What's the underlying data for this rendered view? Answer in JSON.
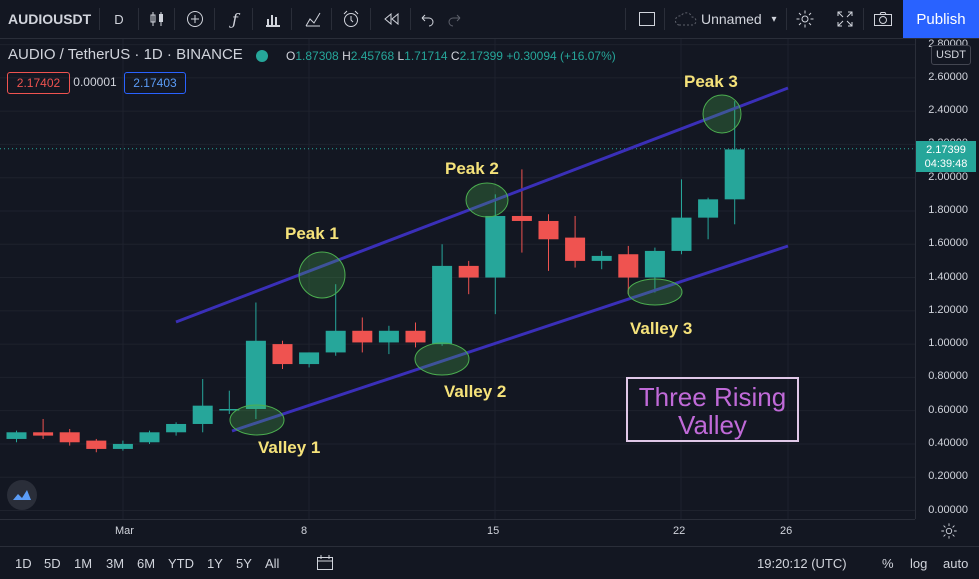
{
  "toolbar": {
    "symbol": "AUDIOUSDT",
    "interval": "D",
    "layout_name": "Unnamed",
    "publish_label": "Publish"
  },
  "legend": {
    "title": "AUDIO / TetherUS · 1D · BINANCE",
    "o_key": "O",
    "o_val": "1.87308",
    "h_key": "H",
    "h_val": "2.45768",
    "l_key": "L",
    "l_val": "1.71714",
    "c_key": "C",
    "c_val": "2.17399",
    "change": "+0.30094 (+16.07%)",
    "bid": "2.17402",
    "spread": "0.00001",
    "ask": "2.17403"
  },
  "price_axis": {
    "currency": "USDT",
    "labels": [
      "2.80000",
      "2.60000",
      "2.40000",
      "2.20000",
      "2.00000",
      "1.80000",
      "1.60000",
      "1.40000",
      "1.20000",
      "1.00000",
      "0.80000",
      "0.60000",
      "0.40000",
      "0.20000",
      "0.00000"
    ],
    "last_price": "2.17399",
    "countdown": "04:39:48"
  },
  "time_axis": {
    "labels": [
      "Mar",
      "8",
      "15",
      "22",
      "26"
    ]
  },
  "annotations": {
    "peak1": "Peak 1",
    "peak2": "Peak 2",
    "peak3": "Peak 3",
    "valley1": "Valley 1",
    "valley2": "Valley 2",
    "valley3": "Valley 3",
    "title_line1": "Three Rising",
    "title_line2": "Valley"
  },
  "bottombar": {
    "ranges": [
      "1D",
      "5D",
      "1M",
      "3M",
      "6M",
      "YTD",
      "1Y",
      "5Y",
      "All"
    ],
    "clock": "19:20:12 (UTC)",
    "percent": "%",
    "log": "log",
    "auto": "auto"
  },
  "colors": {
    "up": "#26a69a",
    "down": "#ef5350",
    "channel": "#3a2fb8",
    "accent": "#2962ff"
  },
  "chart_data": {
    "type": "candlestick",
    "candles": [
      {
        "o": 0.43,
        "h": 0.48,
        "l": 0.41,
        "c": 0.47
      },
      {
        "o": 0.47,
        "h": 0.55,
        "l": 0.43,
        "c": 0.45
      },
      {
        "o": 0.47,
        "h": 0.49,
        "l": 0.39,
        "c": 0.41
      },
      {
        "o": 0.42,
        "h": 0.43,
        "l": 0.35,
        "c": 0.37
      },
      {
        "o": 0.37,
        "h": 0.42,
        "l": 0.36,
        "c": 0.4
      },
      {
        "o": 0.41,
        "h": 0.48,
        "l": 0.4,
        "c": 0.47
      },
      {
        "o": 0.47,
        "h": 0.53,
        "l": 0.45,
        "c": 0.52
      },
      {
        "o": 0.52,
        "h": 0.79,
        "l": 0.47,
        "c": 0.63
      },
      {
        "o": 0.61,
        "h": 0.72,
        "l": 0.58,
        "c": 0.61
      },
      {
        "o": 0.61,
        "h": 1.25,
        "l": 0.55,
        "c": 1.02
      },
      {
        "o": 1.0,
        "h": 1.02,
        "l": 0.85,
        "c": 0.88
      },
      {
        "o": 0.88,
        "h": 0.95,
        "l": 0.86,
        "c": 0.95
      },
      {
        "o": 0.95,
        "h": 1.36,
        "l": 0.93,
        "c": 1.08
      },
      {
        "o": 1.08,
        "h": 1.16,
        "l": 0.95,
        "c": 1.01
      },
      {
        "o": 1.01,
        "h": 1.11,
        "l": 0.94,
        "c": 1.08
      },
      {
        "o": 1.08,
        "h": 1.13,
        "l": 0.98,
        "c": 1.01
      },
      {
        "o": 1.0,
        "h": 1.6,
        "l": 0.99,
        "c": 1.47
      },
      {
        "o": 1.47,
        "h": 1.5,
        "l": 1.3,
        "c": 1.4
      },
      {
        "o": 1.4,
        "h": 1.9,
        "l": 1.18,
        "c": 1.77
      },
      {
        "o": 1.77,
        "h": 2.05,
        "l": 1.55,
        "c": 1.74
      },
      {
        "o": 1.74,
        "h": 1.78,
        "l": 1.44,
        "c": 1.63
      },
      {
        "o": 1.64,
        "h": 1.77,
        "l": 1.46,
        "c": 1.5
      },
      {
        "o": 1.5,
        "h": 1.56,
        "l": 1.45,
        "c": 1.53
      },
      {
        "o": 1.54,
        "h": 1.59,
        "l": 1.3,
        "c": 1.4
      },
      {
        "o": 1.4,
        "h": 1.58,
        "l": 1.31,
        "c": 1.56
      },
      {
        "o": 1.56,
        "h": 1.99,
        "l": 1.54,
        "c": 1.76
      },
      {
        "o": 1.76,
        "h": 1.88,
        "l": 1.63,
        "c": 1.87
      },
      {
        "o": 1.87,
        "h": 2.46,
        "l": 1.72,
        "c": 2.17
      }
    ],
    "y_range": [
      0,
      2.8
    ]
  }
}
